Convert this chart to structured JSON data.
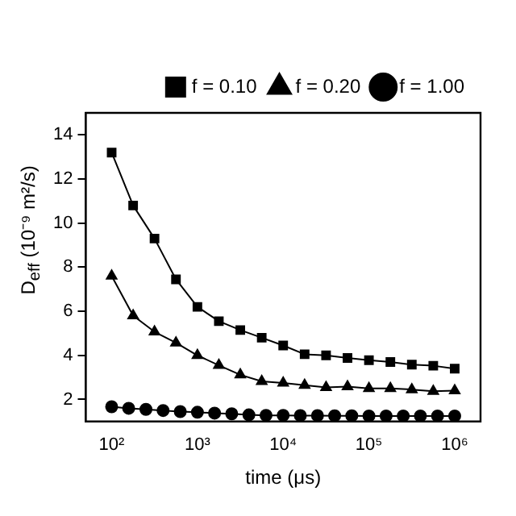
{
  "chart_data": {
    "type": "line",
    "xlabel": "time (μs)",
    "ylabel": "D$_{eff}$ (10⁻⁹ m²/s)",
    "log": "x",
    "xlim": [
      50,
      2000000
    ],
    "xticks": [
      {
        "value": 100,
        "label": "10²"
      },
      {
        "value": 1000,
        "label": "10³"
      },
      {
        "value": 10000,
        "label": "10⁴"
      },
      {
        "value": 100000,
        "label": "10⁵"
      },
      {
        "value": 1000000,
        "label": "10⁶"
      }
    ],
    "ylim": [
      1,
      15
    ],
    "yticks": [
      2,
      4,
      6,
      8,
      10,
      12,
      14
    ],
    "grid": false,
    "legend": "top right",
    "line_style": "solid",
    "series": [
      {
        "name": "f = 0.10",
        "color": "#000000",
        "marker": "square",
        "x": [
          100,
          178,
          316,
          562,
          1000,
          1778,
          3162,
          5623,
          10000,
          17783,
          31623,
          56234,
          100000,
          177828,
          316228,
          562341,
          1000000
        ],
        "values": [
          13.2,
          10.8,
          9.3,
          7.45,
          6.2,
          5.55,
          5.15,
          4.8,
          4.45,
          4.05,
          4.0,
          3.88,
          3.78,
          3.7,
          3.58,
          3.53,
          3.4
        ]
      },
      {
        "name": "f = 0.20",
        "color": "#000000",
        "marker": "triangle",
        "x": [
          100,
          178,
          316,
          562,
          1000,
          1778,
          3162,
          5623,
          10000,
          17783,
          31623,
          56234,
          100000,
          177828,
          316228,
          562341,
          1000000
        ],
        "values": [
          7.6,
          5.8,
          5.07,
          4.57,
          4.0,
          3.55,
          3.12,
          2.82,
          2.75,
          2.65,
          2.55,
          2.58,
          2.5,
          2.5,
          2.45,
          2.37,
          2.4
        ]
      },
      {
        "name": "f = 1.00",
        "color": "#000000",
        "marker": "circle",
        "x": [
          100,
          158,
          251,
          398,
          631,
          1000,
          1585,
          2512,
          3981,
          6310,
          10000,
          15849,
          25119,
          39811,
          63096,
          100000,
          158489,
          251189,
          398107,
          630957,
          1000000
        ],
        "values": [
          1.67,
          1.6,
          1.55,
          1.5,
          1.45,
          1.42,
          1.38,
          1.35,
          1.3,
          1.28,
          1.28,
          1.27,
          1.27,
          1.26,
          1.26,
          1.25,
          1.25,
          1.25,
          1.25,
          1.25,
          1.25
        ]
      }
    ]
  }
}
